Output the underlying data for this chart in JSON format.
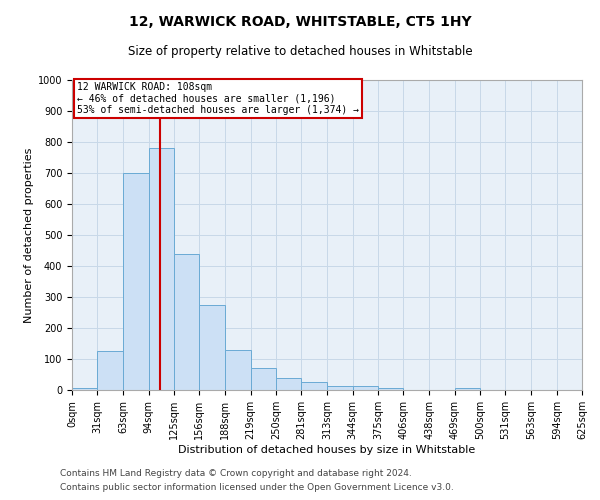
{
  "title": "12, WARWICK ROAD, WHITSTABLE, CT5 1HY",
  "subtitle": "Size of property relative to detached houses in Whitstable",
  "xlabel": "Distribution of detached houses by size in Whitstable",
  "ylabel": "Number of detached properties",
  "bar_color": "#cce0f5",
  "bar_edge_color": "#6aaad4",
  "background_color": "#ffffff",
  "axes_bg_color": "#e8f0f8",
  "grid_color": "#c8d8e8",
  "bins": [
    0,
    31,
    63,
    94,
    125,
    156,
    188,
    219,
    250,
    281,
    313,
    344,
    375,
    406,
    438,
    469,
    500,
    531,
    563,
    594,
    625
  ],
  "counts": [
    8,
    125,
    700,
    780,
    440,
    275,
    130,
    70,
    38,
    25,
    12,
    12,
    8,
    0,
    0,
    8,
    0,
    0,
    0,
    0
  ],
  "tick_labels": [
    "0sqm",
    "31sqm",
    "63sqm",
    "94sqm",
    "125sqm",
    "156sqm",
    "188sqm",
    "219sqm",
    "250sqm",
    "281sqm",
    "313sqm",
    "344sqm",
    "375sqm",
    "406sqm",
    "438sqm",
    "469sqm",
    "500sqm",
    "531sqm",
    "563sqm",
    "594sqm",
    "625sqm"
  ],
  "ylim": [
    0,
    1000
  ],
  "yticks": [
    0,
    100,
    200,
    300,
    400,
    500,
    600,
    700,
    800,
    900,
    1000
  ],
  "red_line_x": 108,
  "red_line_color": "#cc0000",
  "annotation_title": "12 WARWICK ROAD: 108sqm",
  "annotation_line1": "← 46% of detached houses are smaller (1,196)",
  "annotation_line2": "53% of semi-detached houses are larger (1,374) →",
  "annotation_box_color": "#ffffff",
  "annotation_box_edge": "#cc0000",
  "footer_line1": "Contains HM Land Registry data © Crown copyright and database right 2024.",
  "footer_line2": "Contains public sector information licensed under the Open Government Licence v3.0.",
  "title_fontsize": 10,
  "subtitle_fontsize": 8.5,
  "axis_label_fontsize": 8,
  "tick_fontsize": 7,
  "footer_fontsize": 6.5
}
